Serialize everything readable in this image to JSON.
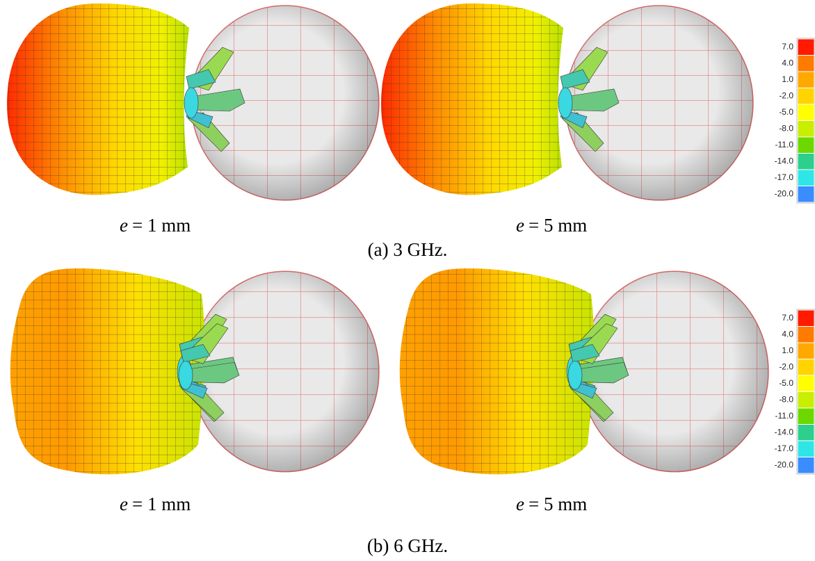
{
  "rows": [
    {
      "panels": [
        {
          "variable": "e",
          "text": "= 1 mm"
        },
        {
          "variable": "e",
          "text": "= 5 mm"
        }
      ],
      "caption": "(a) 3 GHz.",
      "colorbar": {
        "labels": [
          "7.0",
          "4.0",
          "1.0",
          "-2.0",
          "-5.0",
          "-8.0",
          "-11.0",
          "-14.0",
          "-17.0",
          "-20.0"
        ],
        "colors": [
          "#ff1a00",
          "#ff7a00",
          "#ffa800",
          "#ffd400",
          "#ffff00",
          "#c8ee00",
          "#6cd800",
          "#2ccf8c",
          "#2ee6e6",
          "#3a8cff"
        ]
      }
    },
    {
      "panels": [
        {
          "variable": "e",
          "text": "= 1 mm"
        },
        {
          "variable": "e",
          "text": "= 5 mm"
        }
      ],
      "caption": "(b) 6 GHz.",
      "colorbar": {
        "labels": [
          "7.0",
          "4.0",
          "1.0",
          "-2.0",
          "-5.0",
          "-8.0",
          "-11.0",
          "-14.0",
          "-17.0",
          "-20.0"
        ],
        "colors": [
          "#ff1a00",
          "#ff7a00",
          "#ffa800",
          "#ffd400",
          "#ffff00",
          "#c8ee00",
          "#6cd800",
          "#2ccf8c",
          "#2ee6e6",
          "#3a8cff"
        ]
      }
    }
  ]
}
